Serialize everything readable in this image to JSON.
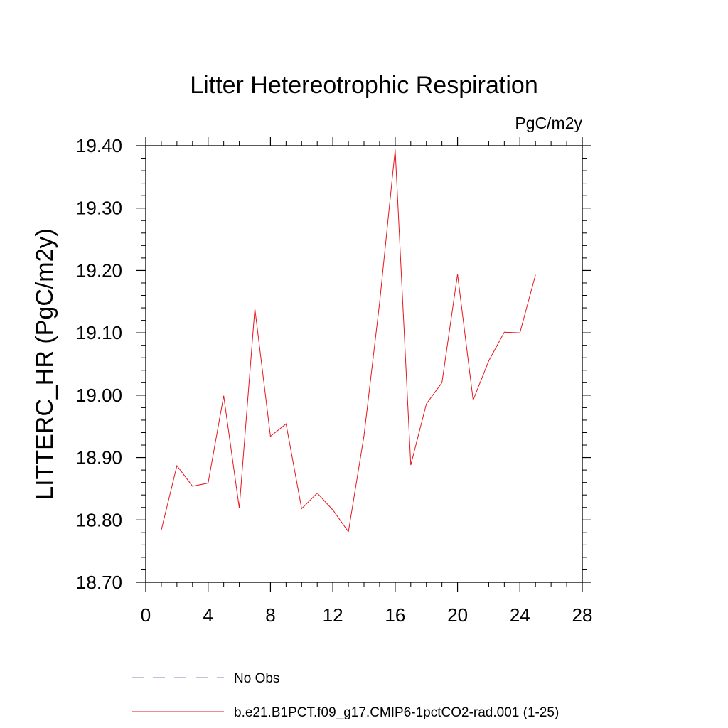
{
  "chart_data": {
    "type": "line",
    "title": "Litter Hetereotrophic Respiration",
    "units": "PgC/m2y",
    "ylabel": "LITTERC_HR  (PgC/m2y)",
    "xlabel": "",
    "xlim": [
      0,
      28
    ],
    "ylim": [
      18.7,
      19.4
    ],
    "x_ticks": [
      0,
      4,
      8,
      12,
      16,
      20,
      24,
      28
    ],
    "y_ticks": [
      "18.70",
      "18.80",
      "18.90",
      "19.00",
      "19.10",
      "19.20",
      "19.30",
      "19.40"
    ],
    "grid": false,
    "legend_placement": "bottom",
    "series": [
      {
        "name": "b.e21.B1PCT.f09_g17.CMIP6-1pctCO2-rad.001 (1-25)",
        "color": "#e8141a",
        "style": "solid",
        "x": [
          1,
          2,
          3,
          4,
          5,
          6,
          7,
          8,
          9,
          10,
          11,
          12,
          13,
          14,
          15,
          16,
          17,
          18,
          19,
          20,
          21,
          22,
          23,
          24,
          25
        ],
        "values": [
          18.784,
          18.887,
          18.854,
          18.859,
          18.999,
          18.819,
          19.139,
          18.934,
          18.954,
          18.818,
          18.843,
          18.816,
          18.781,
          18.935,
          19.148,
          19.394,
          18.888,
          18.986,
          19.02,
          19.194,
          18.992,
          19.055,
          19.101,
          19.1,
          19.193
        ]
      },
      {
        "name": "No Obs",
        "color": "#8080c0",
        "style": "dashed",
        "x": [],
        "values": []
      }
    ]
  }
}
